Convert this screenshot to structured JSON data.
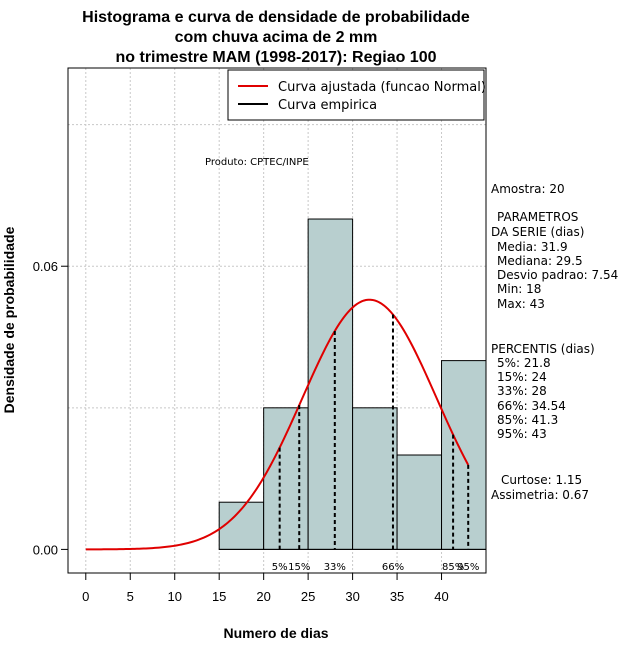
{
  "chart_data": {
    "type": "bar",
    "title_lines": [
      "Histograma e curva de densidade de probabilidade",
      "com chuva acima de 2 mm",
      "no trimestre MAM (1998-2017): Regiao 100"
    ],
    "xlabel": "Numero de dias",
    "ylabel": "Densidade de probabilidade",
    "xlim": [
      -2,
      45
    ],
    "ylim": [
      -0.005,
      0.102
    ],
    "x_ticks": [
      "0",
      "5",
      "10",
      "15",
      "20",
      "25",
      "30",
      "35",
      "40"
    ],
    "x_tick_values": [
      0,
      5,
      10,
      15,
      20,
      25,
      30,
      35,
      40
    ],
    "y_ticks": [
      "0.00",
      "0.06"
    ],
    "y_tick_values": [
      0.0,
      0.06
    ],
    "histogram": {
      "bin_edges": [
        15,
        20,
        25,
        30,
        35,
        40,
        45
      ],
      "densities": [
        0.01,
        0.03,
        0.07,
        0.03,
        0.02,
        0.04
      ],
      "color": "#b8cfcf"
    },
    "normal_curve": {
      "name": "Curva ajustada (funcao Normal)",
      "mean": 31.9,
      "sd": 7.54,
      "x_range": [
        0,
        43
      ],
      "color": "#e00000"
    },
    "percentiles": [
      {
        "label": "5%",
        "value": 21.8
      },
      {
        "label": "15%",
        "value": 24
      },
      {
        "label": "33%",
        "value": 28
      },
      {
        "label": "66%",
        "value": 34.54
      },
      {
        "label": "85%",
        "value": 41.3
      },
      {
        "label": "95%",
        "value": 43
      }
    ],
    "legend": {
      "position": "top-right",
      "entries": [
        {
          "label": "Curva ajustada (funcao Normal)",
          "color": "#e00000"
        },
        {
          "label": "Curva empirica",
          "color": "#000000"
        }
      ]
    },
    "grid": true,
    "annotation": "Produto: CPTEC/INPE"
  },
  "side_panel": {
    "sample": "Amostra: 20",
    "params_title_1": "PARAMETROS",
    "params_title_2": "DA SERIE (dias)",
    "params": [
      "Media: 31.9",
      "Mediana: 29.5",
      "Desvio padrao: 7.54",
      "Min: 18",
      "Max: 43"
    ],
    "perc_title": "PERCENTIS (dias)",
    "perc": [
      "5%: 21.8",
      "15%: 24",
      "33%: 28",
      "66%: 34.54",
      "85%: 41.3",
      "95%: 43"
    ],
    "kurtosis": "Curtose: 1.15",
    "skewness": "Assimetria: 0.67"
  }
}
